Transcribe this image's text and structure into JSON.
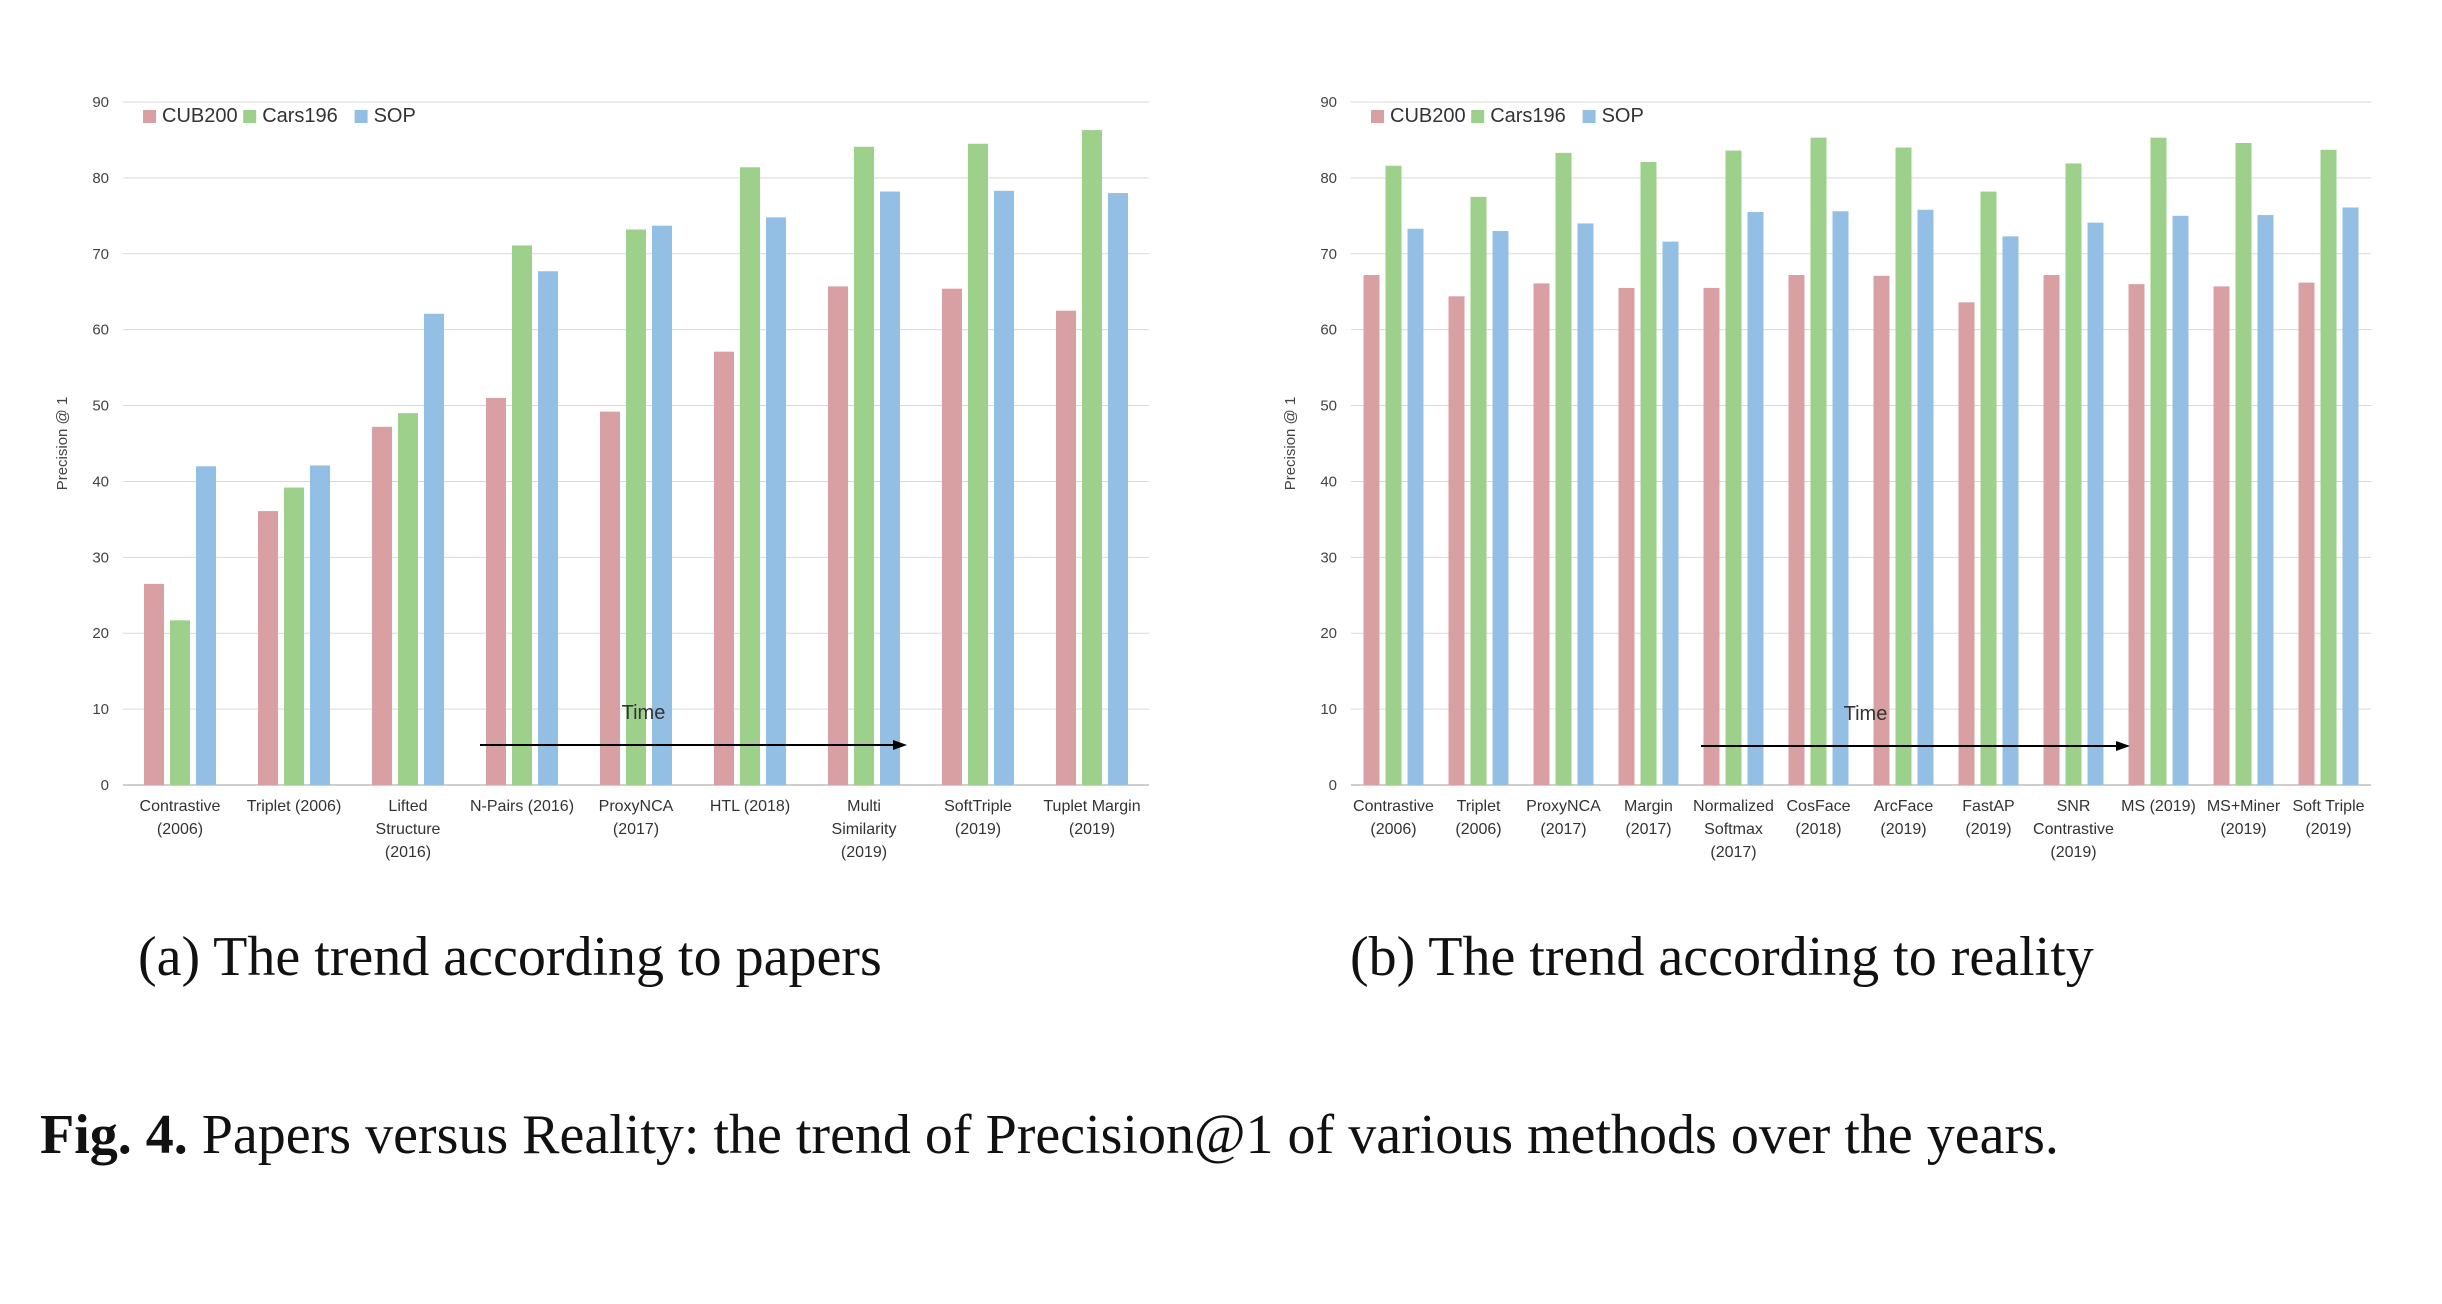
{
  "colors": {
    "CUB200": "#d9a0a4",
    "Cars196": "#9dd08a",
    "SOP": "#93bfe4",
    "grid": "#d9d9d9"
  },
  "chart_data": [
    {
      "type": "bar",
      "ylabel": "Precision @ 1",
      "xlabel": "Time",
      "ylim": [
        0,
        90
      ],
      "yticks": [
        0,
        10,
        20,
        30,
        40,
        50,
        60,
        70,
        80,
        90
      ],
      "grid": true,
      "legend_position": "top-left",
      "categories": [
        [
          "Contrastive",
          "(2006)"
        ],
        [
          "Triplet (2006)"
        ],
        [
          "Lifted",
          "Structure",
          "(2016)"
        ],
        [
          "N-Pairs (2016)"
        ],
        [
          "ProxyNCA",
          "(2017)"
        ],
        [
          "HTL (2018)"
        ],
        [
          "Multi",
          "Similarity",
          "(2019)"
        ],
        [
          "SoftTriple",
          "(2019)"
        ],
        [
          "Tuplet Margin",
          "(2019)"
        ]
      ],
      "series": [
        {
          "name": "CUB200",
          "values": [
            26.5,
            36.1,
            47.2,
            51.0,
            49.2,
            57.1,
            65.7,
            65.4,
            62.5
          ]
        },
        {
          "name": "Cars196",
          "values": [
            21.7,
            39.2,
            49.0,
            71.1,
            73.2,
            81.4,
            84.1,
            84.5,
            86.3
          ]
        },
        {
          "name": "SOP",
          "values": [
            42.0,
            42.1,
            62.1,
            67.7,
            73.7,
            74.8,
            78.2,
            78.3,
            78.0
          ]
        }
      ],
      "subcaption": "(a) The trend according to papers"
    },
    {
      "type": "bar",
      "ylabel": "Precision @ 1",
      "xlabel": "Time",
      "ylim": [
        0,
        90
      ],
      "yticks": [
        0,
        10,
        20,
        30,
        40,
        50,
        60,
        70,
        80,
        90
      ],
      "grid": true,
      "legend_position": "top-left",
      "categories": [
        [
          "Contrastive",
          "(2006)"
        ],
        [
          "Triplet",
          "(2006)"
        ],
        [
          "ProxyNCA",
          "(2017)"
        ],
        [
          "Margin",
          "(2017)"
        ],
        [
          "Normalized",
          "Softmax",
          "(2017)"
        ],
        [
          "CosFace",
          "(2018)"
        ],
        [
          "ArcFace",
          "(2019)"
        ],
        [
          "FastAP",
          "(2019)"
        ],
        [
          "SNR",
          "Contrastive",
          "(2019)"
        ],
        [
          "MS (2019)"
        ],
        [
          "MS+Miner",
          "(2019)"
        ],
        [
          "Soft Triple",
          "(2019)"
        ]
      ],
      "series": [
        {
          "name": "CUB200",
          "values": [
            67.2,
            64.4,
            66.1,
            65.5,
            65.5,
            67.2,
            67.1,
            63.6,
            67.2,
            66.0,
            65.7,
            66.2
          ]
        },
        {
          "name": "Cars196",
          "values": [
            81.6,
            77.5,
            83.3,
            82.1,
            83.6,
            85.3,
            84.0,
            78.2,
            81.9,
            85.3,
            84.6,
            83.7
          ]
        },
        {
          "name": "SOP",
          "values": [
            73.3,
            73.0,
            74.0,
            71.6,
            75.5,
            75.6,
            75.8,
            72.3,
            74.1,
            75.0,
            75.1,
            76.1
          ]
        }
      ],
      "subcaption": "(b) The trend according to reality"
    }
  ],
  "caption": {
    "label": "Fig. 4.",
    "text": " Papers versus Reality: the trend of Precision@1 of various methods over the years."
  }
}
